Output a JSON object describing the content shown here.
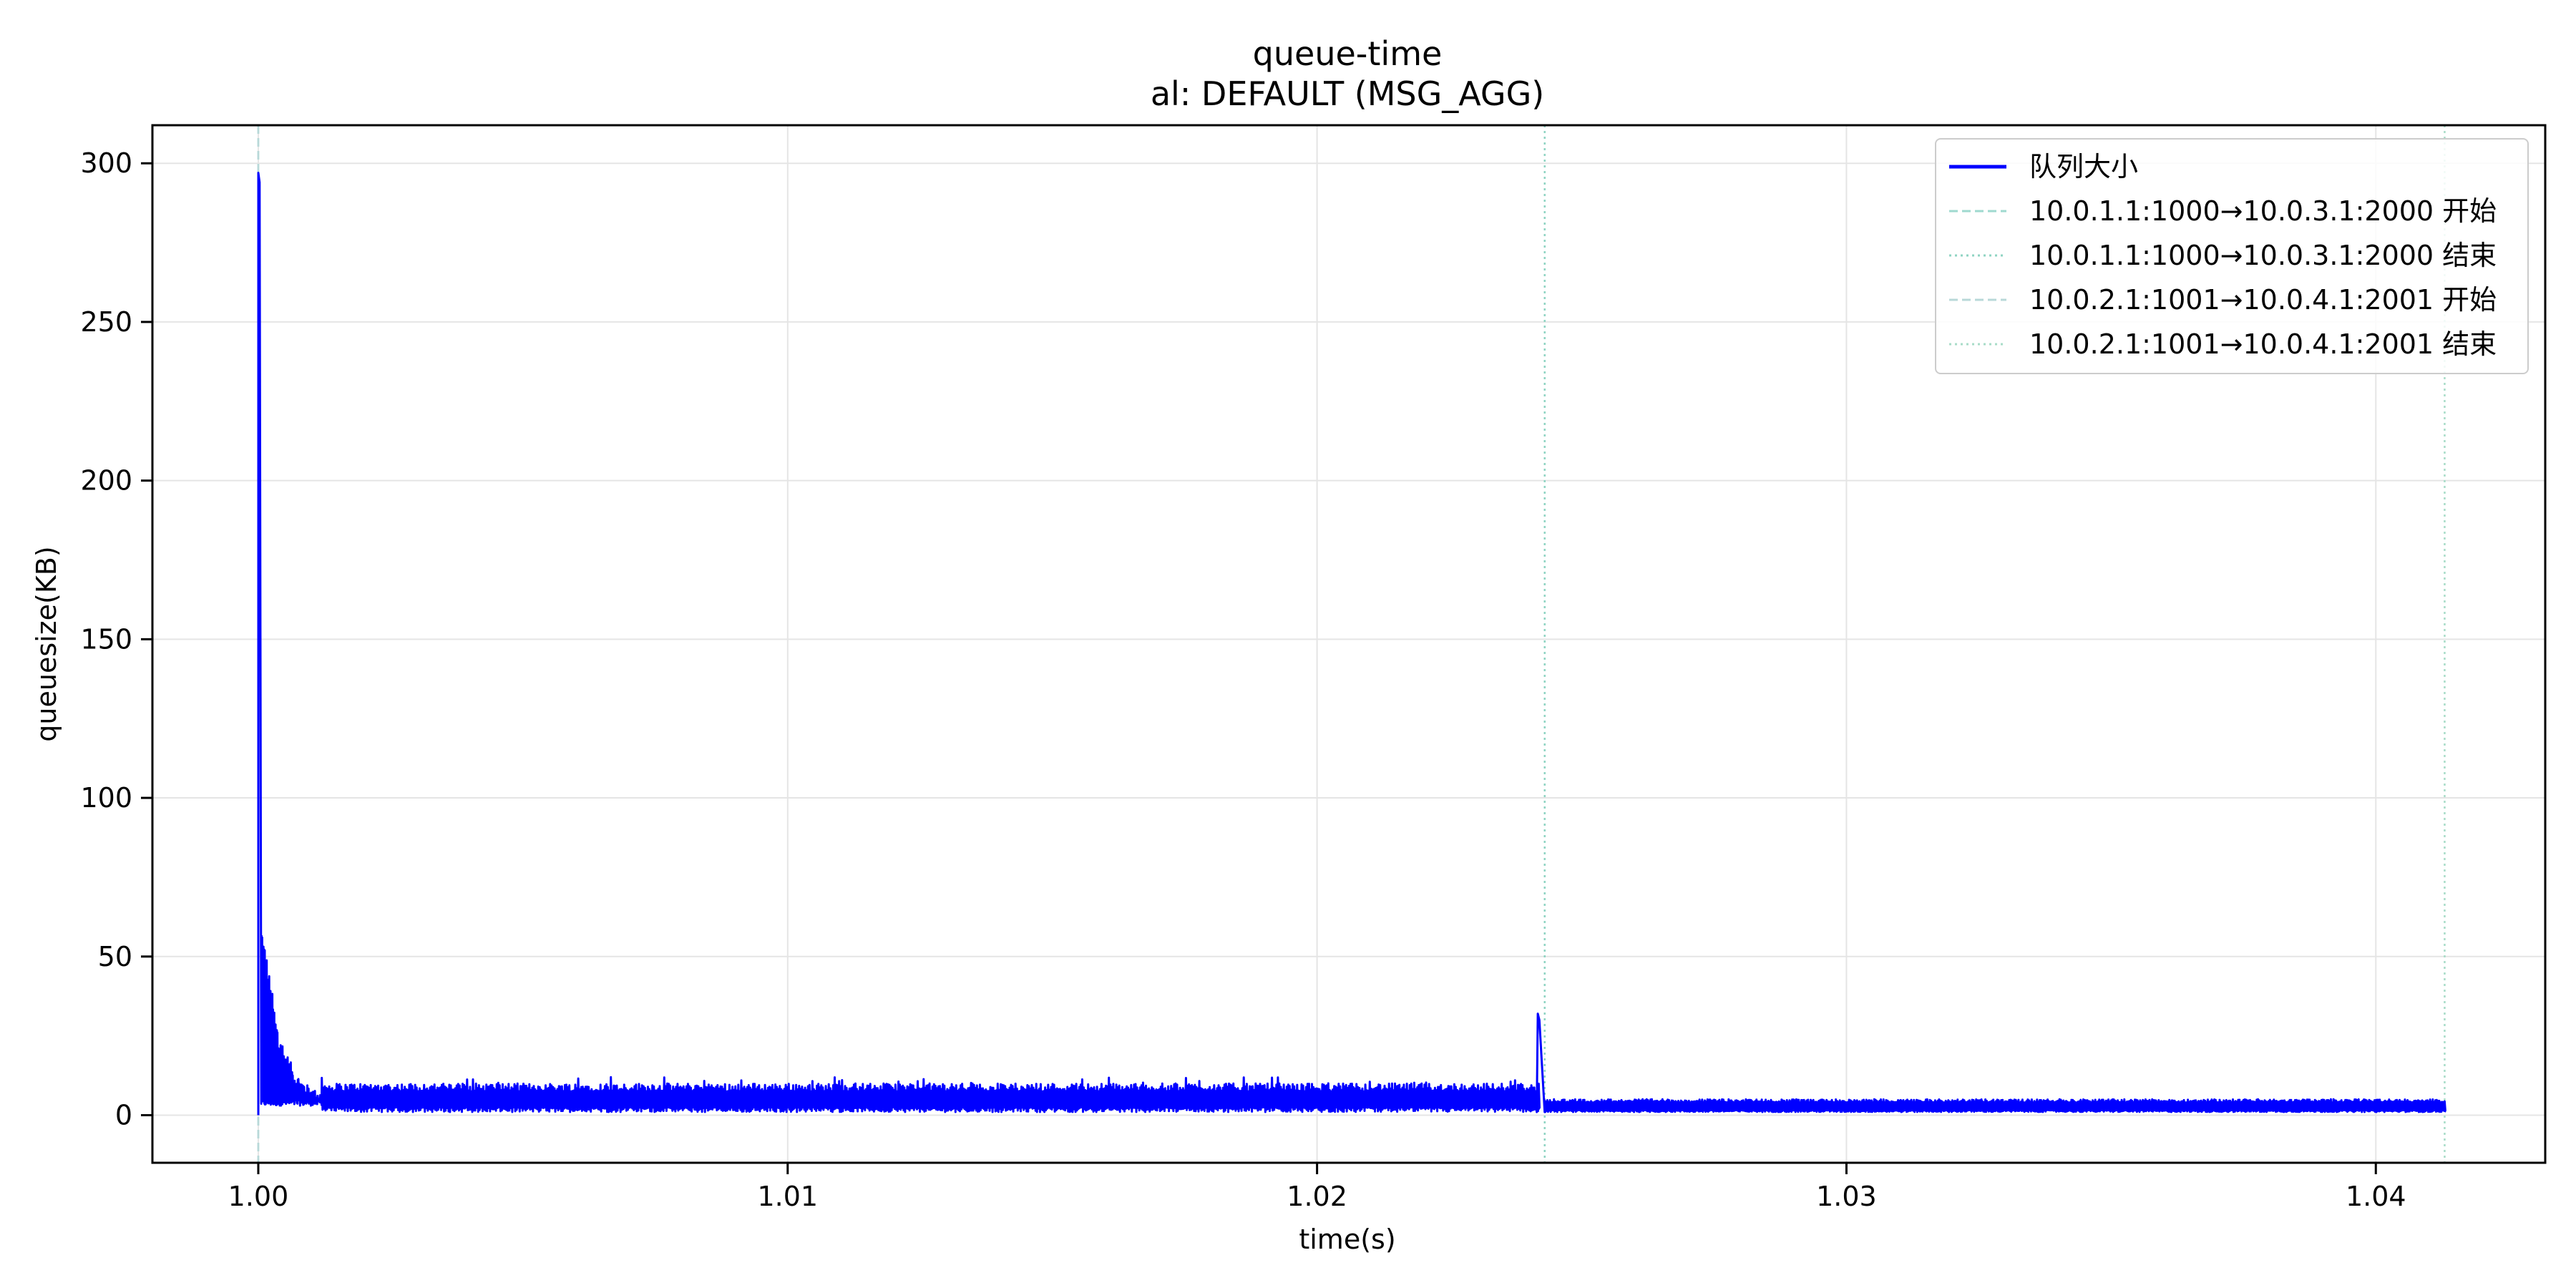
{
  "chart_data": {
    "type": "line",
    "title": "queue-time",
    "subtitle": "al: DEFAULT (MSG_AGG)",
    "xlabel": "time(s)",
    "ylabel": "queuesize(KB)",
    "xlim": [
      0.998,
      1.0432
    ],
    "ylim": [
      -15,
      312
    ],
    "xticks": [
      1.0,
      1.01,
      1.02,
      1.03,
      1.04
    ],
    "xtick_labels": [
      "1.00",
      "1.01",
      "1.02",
      "1.03",
      "1.04"
    ],
    "yticks": [
      0,
      50,
      100,
      150,
      200,
      250,
      300
    ],
    "ytick_labels": [
      "0",
      "50",
      "100",
      "150",
      "200",
      "250",
      "300"
    ],
    "grid": true,
    "legend_position": "top-right",
    "series": [
      {
        "name": "队列大小",
        "color": "#0000ff",
        "style": "solid",
        "segments": [
          {
            "x_range": [
              1.0,
              1.00005
            ],
            "peak": 297,
            "min": 0
          },
          {
            "x_range": [
              1.00005,
              1.0012
            ],
            "max": 65,
            "min": 3,
            "decay": "fast"
          },
          {
            "x_range": [
              1.0012,
              1.0242
            ],
            "max": 12,
            "min": 1,
            "typical_high": 9
          },
          {
            "x_range": [
              1.02415,
              1.0243
            ],
            "peak": 32,
            "min": 1
          },
          {
            "x_range": [
              1.0243,
              1.0413
            ],
            "max": 5,
            "min": 1
          }
        ]
      }
    ],
    "markers": [
      {
        "name": "10.0.1.1:1000→10.0.3.1:2000 开始",
        "x": 1.0,
        "style": "dashed",
        "color": "#9fd9cf"
      },
      {
        "name": "10.0.1.1:1000→10.0.3.1:2000 结束",
        "x": 1.0243,
        "style": "dotted",
        "color": "#8fd4c3"
      },
      {
        "name": "10.0.2.1:1001→10.0.4.1:2001 开始",
        "x": 1.0,
        "style": "dashed",
        "color": "#b8d8d8"
      },
      {
        "name": "10.0.2.1:1001→10.0.4.1:2001 结束",
        "x": 1.0413,
        "style": "dotted",
        "color": "#a8dcc8"
      }
    ],
    "colors": {
      "axis": "#000000",
      "grid": "#e5e5e5",
      "line": "#0000ff"
    }
  }
}
